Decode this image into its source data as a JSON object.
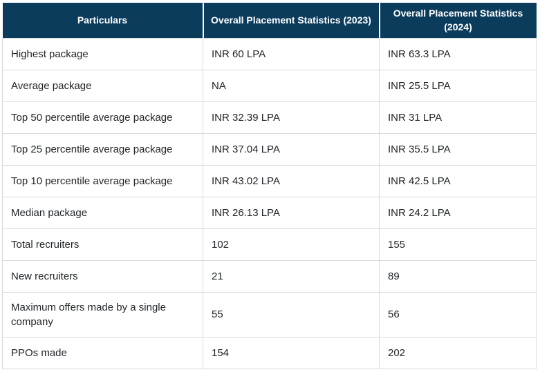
{
  "colors": {
    "header_background": "#0b3c5c",
    "header_text": "#ffffff",
    "cell_text": "#212529",
    "border": "#d9d9d9",
    "page_background": "#ffffff"
  },
  "table": {
    "columns": [
      {
        "label": "Particulars"
      },
      {
        "label": "Overall Placement Statistics (2023)"
      },
      {
        "label": "Overall Placement Statistics (2024)"
      }
    ],
    "rows": [
      {
        "particulars": "Highest package",
        "stat_2023": "INR 60 LPA",
        "stat_2024": "INR 63.3 LPA"
      },
      {
        "particulars": "Average package",
        "stat_2023": "NA",
        "stat_2024": "INR 25.5 LPA"
      },
      {
        "particulars": "Top 50 percentile average package",
        "stat_2023": "INR 32.39 LPA",
        "stat_2024": "INR 31 LPA"
      },
      {
        "particulars": "Top 25 percentile average package",
        "stat_2023": "INR 37.04 LPA",
        "stat_2024": "INR 35.5 LPA"
      },
      {
        "particulars": "Top 10 percentile average package",
        "stat_2023": "INR 43.02 LPA",
        "stat_2024": "INR 42.5 LPA"
      },
      {
        "particulars": "Median package",
        "stat_2023": "INR 26.13 LPA",
        "stat_2024": "INR 24.2 LPA"
      },
      {
        "particulars": "Total recruiters",
        "stat_2023": "102",
        "stat_2024": "155"
      },
      {
        "particulars": "New recruiters",
        "stat_2023": "21",
        "stat_2024": "89"
      },
      {
        "particulars": "Maximum offers made by a single company",
        "stat_2023": "55",
        "stat_2024": "56"
      },
      {
        "particulars": "PPOs made",
        "stat_2023": "154",
        "stat_2024": "202"
      }
    ]
  },
  "chart_data": {
    "type": "table",
    "columns": [
      "Particulars",
      "Overall Placement Statistics (2023)",
      "Overall Placement Statistics (2024)"
    ],
    "rows": [
      [
        "Highest package",
        "INR 60 LPA",
        "INR 63.3 LPA"
      ],
      [
        "Average package",
        "NA",
        "INR 25.5 LPA"
      ],
      [
        "Top 50 percentile average package",
        "INR 32.39 LPA",
        "INR 31 LPA"
      ],
      [
        "Top 25 percentile average package",
        "INR 37.04 LPA",
        "INR 35.5 LPA"
      ],
      [
        "Top 10 percentile average package",
        "INR 43.02 LPA",
        "INR 42.5 LPA"
      ],
      [
        "Median package",
        "INR 26.13 LPA",
        "INR 24.2 LPA"
      ],
      [
        "Total recruiters",
        "102",
        "155"
      ],
      [
        "New recruiters",
        "21",
        "89"
      ],
      [
        "Maximum offers made by a single company",
        "55",
        "56"
      ],
      [
        "PPOs made",
        "154",
        "202"
      ]
    ]
  }
}
